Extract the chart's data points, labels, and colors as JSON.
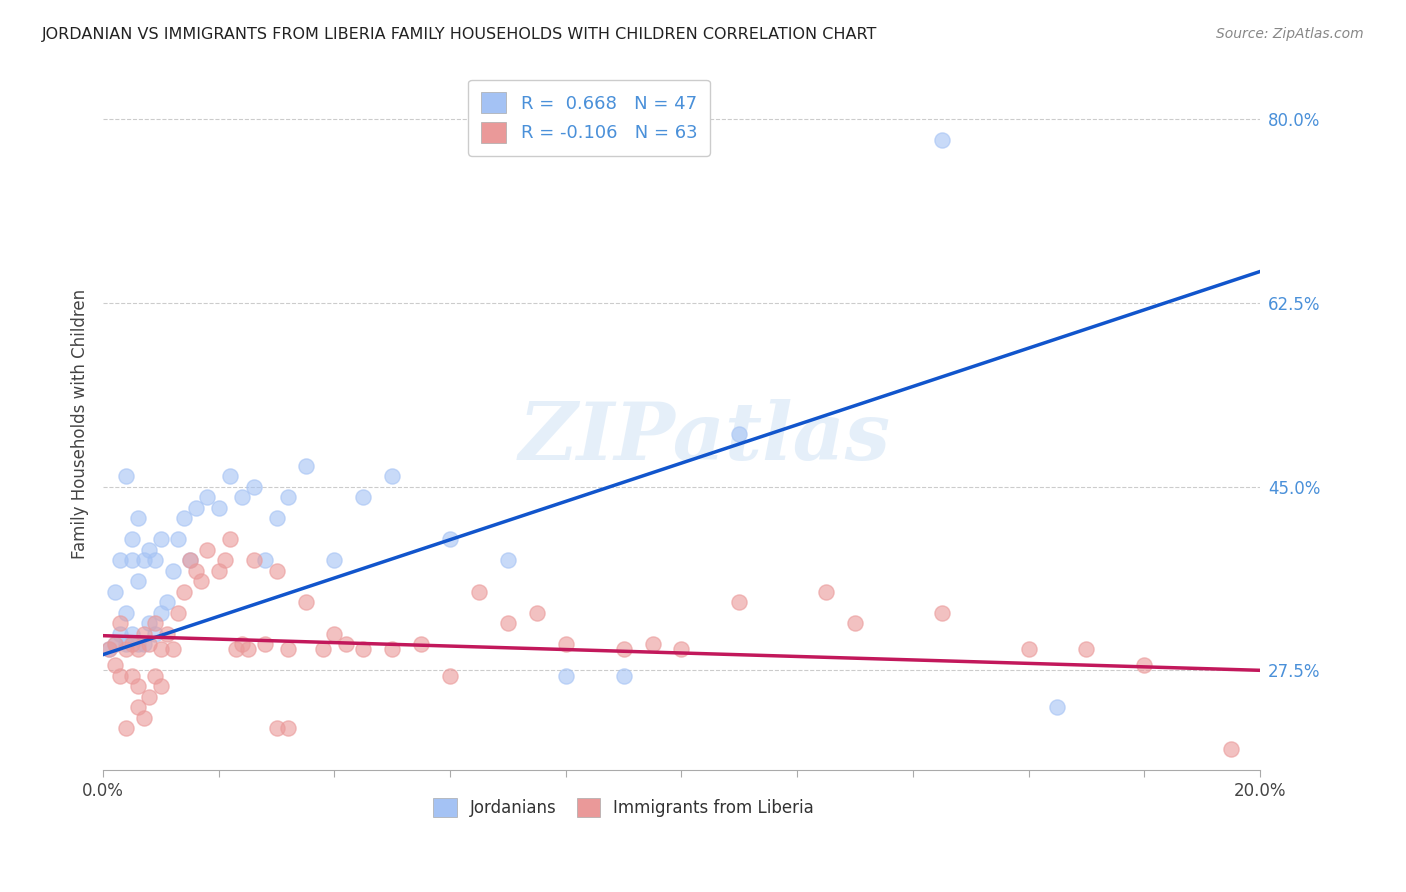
{
  "title": "JORDANIAN VS IMMIGRANTS FROM LIBERIA FAMILY HOUSEHOLDS WITH CHILDREN CORRELATION CHART",
  "source": "Source: ZipAtlas.com",
  "ylabel": "Family Households with Children",
  "yticks": [
    "27.5%",
    "45.0%",
    "62.5%",
    "80.0%"
  ],
  "ytick_vals": [
    0.275,
    0.45,
    0.625,
    0.8
  ],
  "legend1_label": "R =  0.668   N = 47",
  "legend2_label": "R = -0.106   N = 63",
  "blue_color": "#a4c2f4",
  "pink_color": "#ea9999",
  "blue_line_color": "#1155cc",
  "pink_line_color": "#c2185b",
  "watermark": "ZIPatlas",
  "jordanian_x": [
    0.001,
    0.002,
    0.002,
    0.003,
    0.003,
    0.004,
    0.004,
    0.004,
    0.005,
    0.005,
    0.005,
    0.006,
    0.006,
    0.006,
    0.007,
    0.007,
    0.008,
    0.008,
    0.009,
    0.009,
    0.01,
    0.01,
    0.011,
    0.012,
    0.013,
    0.014,
    0.015,
    0.016,
    0.018,
    0.02,
    0.022,
    0.024,
    0.026,
    0.028,
    0.03,
    0.032,
    0.035,
    0.04,
    0.045,
    0.05,
    0.06,
    0.07,
    0.08,
    0.09,
    0.11,
    0.145,
    0.165
  ],
  "jordanian_y": [
    0.295,
    0.3,
    0.35,
    0.31,
    0.38,
    0.3,
    0.33,
    0.46,
    0.31,
    0.38,
    0.4,
    0.3,
    0.36,
    0.42,
    0.3,
    0.38,
    0.32,
    0.39,
    0.31,
    0.38,
    0.33,
    0.4,
    0.34,
    0.37,
    0.4,
    0.42,
    0.38,
    0.43,
    0.44,
    0.43,
    0.46,
    0.44,
    0.45,
    0.38,
    0.42,
    0.44,
    0.47,
    0.38,
    0.44,
    0.46,
    0.4,
    0.38,
    0.27,
    0.27,
    0.5,
    0.78,
    0.24
  ],
  "liberia_x": [
    0.001,
    0.002,
    0.002,
    0.003,
    0.003,
    0.004,
    0.004,
    0.005,
    0.005,
    0.006,
    0.006,
    0.006,
    0.007,
    0.007,
    0.008,
    0.008,
    0.009,
    0.009,
    0.01,
    0.01,
    0.011,
    0.012,
    0.013,
    0.014,
    0.015,
    0.016,
    0.017,
    0.018,
    0.02,
    0.021,
    0.022,
    0.023,
    0.024,
    0.025,
    0.026,
    0.028,
    0.03,
    0.032,
    0.035,
    0.038,
    0.04,
    0.042,
    0.045,
    0.05,
    0.055,
    0.06,
    0.065,
    0.07,
    0.075,
    0.08,
    0.09,
    0.1,
    0.11,
    0.13,
    0.145,
    0.16,
    0.17,
    0.18,
    0.125,
    0.095,
    0.03,
    0.032,
    0.195
  ],
  "liberia_y": [
    0.295,
    0.3,
    0.28,
    0.32,
    0.27,
    0.295,
    0.22,
    0.3,
    0.27,
    0.295,
    0.26,
    0.24,
    0.31,
    0.23,
    0.3,
    0.25,
    0.32,
    0.27,
    0.295,
    0.26,
    0.31,
    0.295,
    0.33,
    0.35,
    0.38,
    0.37,
    0.36,
    0.39,
    0.37,
    0.38,
    0.4,
    0.295,
    0.3,
    0.295,
    0.38,
    0.3,
    0.37,
    0.295,
    0.34,
    0.295,
    0.31,
    0.3,
    0.295,
    0.295,
    0.3,
    0.27,
    0.35,
    0.32,
    0.33,
    0.3,
    0.295,
    0.295,
    0.34,
    0.32,
    0.33,
    0.295,
    0.295,
    0.28,
    0.35,
    0.3,
    0.22,
    0.22,
    0.2
  ],
  "blue_trend_x": [
    0.0,
    0.2
  ],
  "blue_trend_y": [
    0.29,
    0.655
  ],
  "pink_trend_x": [
    0.0,
    0.2
  ],
  "pink_trend_y": [
    0.308,
    0.275
  ],
  "xlim": [
    0.0,
    0.2
  ],
  "ylim": [
    0.18,
    0.84
  ]
}
